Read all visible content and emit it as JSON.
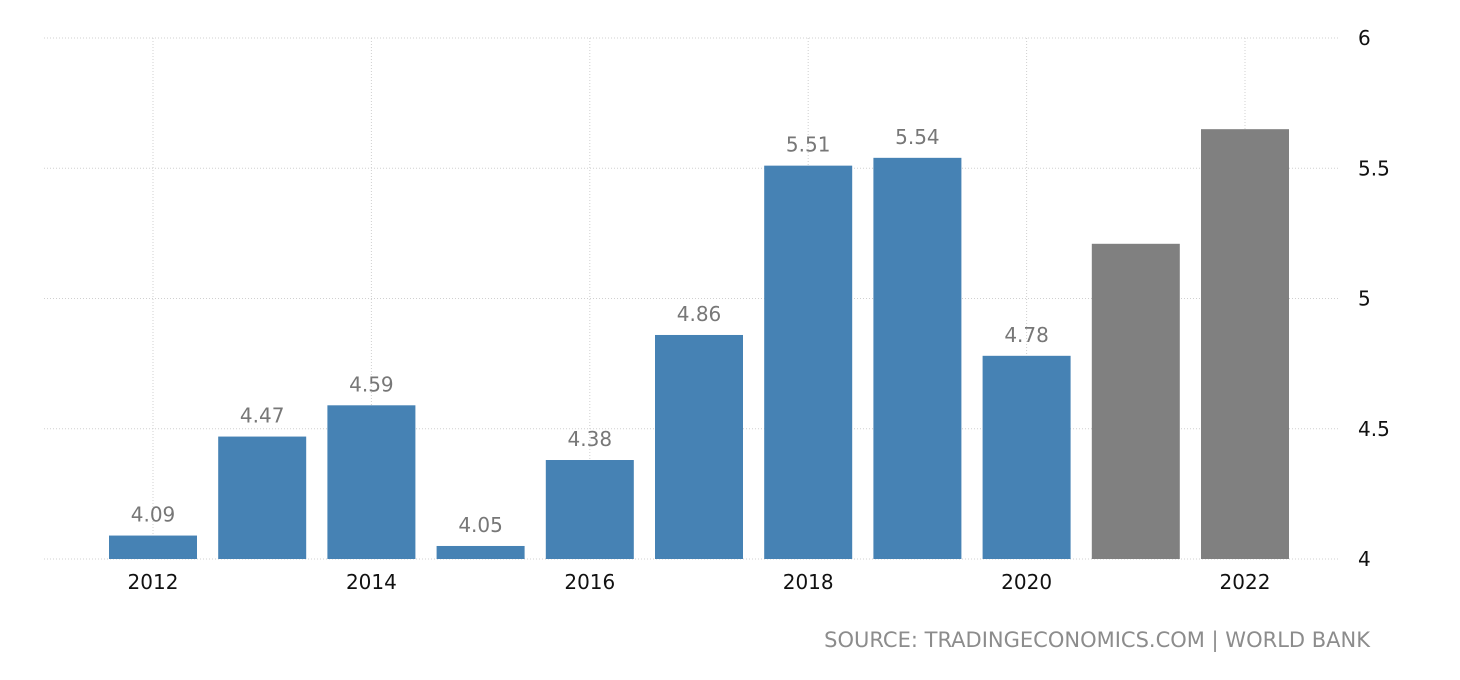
{
  "chart_data": {
    "type": "bar",
    "categories": [
      "2012",
      "2013",
      "2014",
      "2015",
      "2016",
      "2017",
      "2018",
      "2019",
      "2020",
      "2021",
      "2022"
    ],
    "values": [
      4.09,
      4.47,
      4.59,
      4.05,
      4.38,
      4.86,
      5.51,
      5.54,
      4.78,
      5.21,
      5.65
    ],
    "data_labels": [
      "4.09",
      "4.47",
      "4.59",
      "4.05",
      "4.38",
      "4.86",
      "5.51",
      "5.54",
      "4.78",
      "",
      ""
    ],
    "forecast": [
      false,
      false,
      false,
      false,
      false,
      false,
      false,
      false,
      false,
      true,
      true
    ],
    "x_tick_labels": [
      "2012",
      "2014",
      "2016",
      "2018",
      "2020",
      "2022"
    ],
    "y_ticks": [
      "4",
      "4.5",
      "5",
      "5.5",
      "6"
    ],
    "ylim": [
      4,
      6
    ],
    "y_axis_position": "right",
    "grid": true,
    "colors": {
      "actual": "#4682b4",
      "forecast": "#808080",
      "grid": "#d0d0d0",
      "label": "#777777"
    },
    "title": "",
    "xlabel": "",
    "ylabel": ""
  },
  "source": "SOURCE: TRADINGECONOMICS.COM | WORLD BANK"
}
